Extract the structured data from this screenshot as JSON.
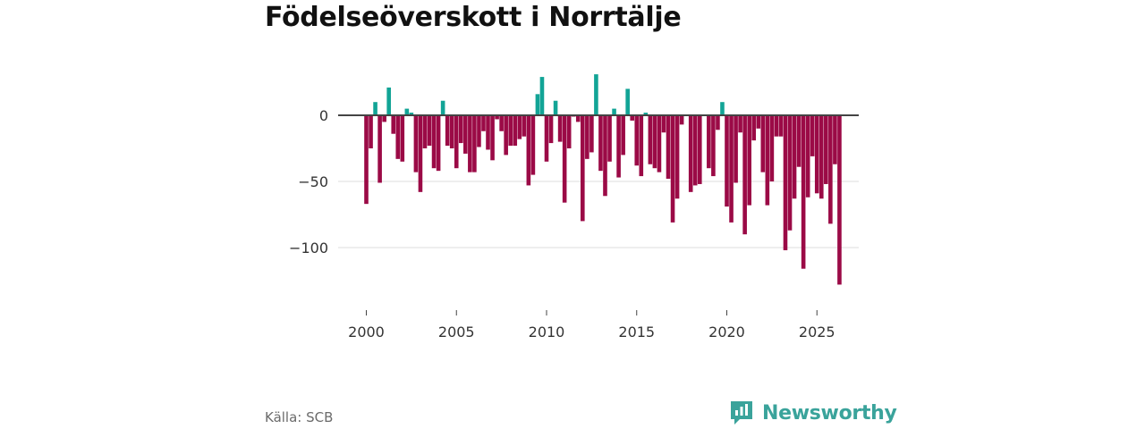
{
  "title": "Födelseöverskott i Norrtälje",
  "source": "Källa: SCB",
  "brand": {
    "name": "Newsworthy",
    "icon": "newsworthy-logo-icon"
  },
  "colors": {
    "positive": "#12a496",
    "negative": "#9b0a46",
    "zero_line": "#444444",
    "grid": "#dddddd"
  },
  "chart_data": {
    "type": "bar",
    "title": "Födelseöverskott i Norrtälje",
    "xlabel": "",
    "ylabel": "",
    "frequency": "quarterly",
    "x_start": 2000.0,
    "x_step": 0.25,
    "xlim": [
      1998.9,
      2027.2
    ],
    "ylim": [
      -142,
      36
    ],
    "x_ticks": [
      2000,
      2005,
      2010,
      2015,
      2020,
      2025
    ],
    "x_tick_labels": [
      "2000",
      "2005",
      "2010",
      "2015",
      "2020",
      "2025"
    ],
    "y_ticks": [
      0,
      -50,
      -100
    ],
    "y_tick_labels": [
      "0",
      "−50",
      "−100"
    ],
    "values": [
      -67,
      -25,
      10,
      -51,
      -5,
      21,
      -14,
      -33,
      -35,
      5,
      2,
      -43,
      -58,
      -25,
      -23,
      -40,
      -42,
      11,
      -23,
      -25,
      -40,
      -21,
      -29,
      -43,
      -43,
      -24,
      -12,
      -26,
      -34,
      -3,
      -12,
      -30,
      -23,
      -23,
      -18,
      -16,
      -53,
      -45,
      16,
      29,
      -35,
      -21,
      11,
      -20,
      -66,
      -25,
      -1,
      -5,
      -80,
      -33,
      -28,
      31,
      -42,
      -61,
      -35,
      5,
      -47,
      -30,
      20,
      -4,
      -38,
      -46,
      2,
      -37,
      -40,
      -43,
      -13,
      -48,
      -81,
      -63,
      -7,
      0,
      -58,
      -53,
      -52,
      0,
      -40,
      -46,
      -11,
      10,
      -69,
      -81,
      -51,
      -13,
      -90,
      -68,
      -19,
      -10,
      -43,
      -68,
      -50,
      -16,
      -16,
      -102,
      -87,
      -63,
      -39,
      -116,
      -62,
      -31,
      -59,
      -63,
      -52,
      -82,
      -37,
      -128
    ]
  }
}
